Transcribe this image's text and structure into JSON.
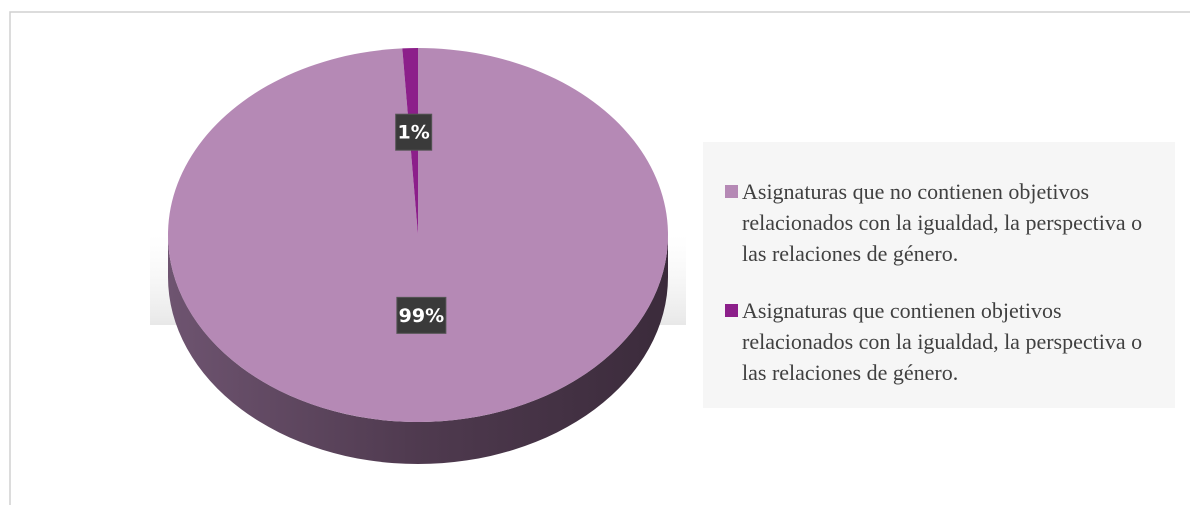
{
  "chart_data": {
    "type": "pie",
    "categories": [
      "Asignaturas que no contienen objetivos relacionados con la igualdad, la perspectiva o las relaciones de género.",
      "Asignaturas que contienen objetivos relacionados con la igualdad, la perspectiva o las relaciones de género."
    ],
    "values": [
      99,
      1
    ],
    "value_labels": [
      "99%",
      "1%"
    ],
    "colors": [
      "#b589b5",
      "#8c1f8a"
    ],
    "legend": "right"
  }
}
